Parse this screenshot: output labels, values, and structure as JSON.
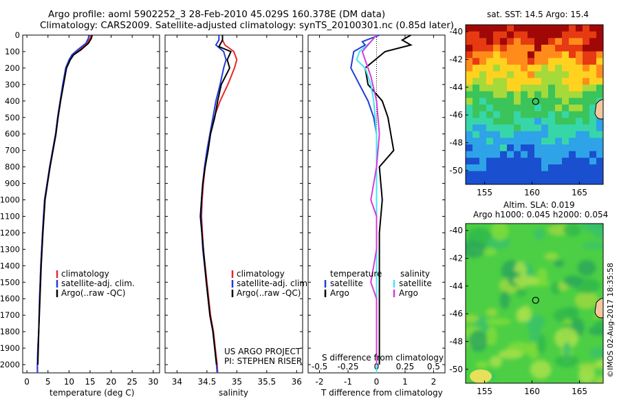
{
  "header": {
    "title_line1": "Argo profile: aoml 5902252_3 28-Feb-2010 45.029S 160.378E (DM data)",
    "title_line2": "Climatology: CARS2009. Satellite-adjusted climatology: synTS_20100301.nc (0.85d later)"
  },
  "colors": {
    "climatology": "#e8272a",
    "satellite": "#1f3bd8",
    "argo": "#000000",
    "satellite_s": "#3fe6f2",
    "argo_s": "#d63ad8"
  },
  "depth_axis": {
    "ticks": [
      0,
      100,
      200,
      300,
      400,
      500,
      600,
      700,
      800,
      900,
      1000,
      1100,
      1200,
      1300,
      1400,
      1500,
      1600,
      1700,
      1800,
      1900,
      2000
    ],
    "range": [
      0,
      2050
    ]
  },
  "chart_data": [
    {
      "id": "temperature",
      "type": "line",
      "xlabel": "temperature (deg C)",
      "xlim": [
        -1,
        31.5
      ],
      "xticks": [
        0,
        5,
        10,
        15,
        20,
        25,
        30
      ],
      "ylim": [
        0,
        2050
      ],
      "legend": {
        "placement": "lower-middle",
        "entries": [
          "climatology",
          "satellite-adj. clim.",
          "Argo(..raw -QC)"
        ]
      },
      "series": [
        {
          "name": "climatology",
          "color": "#e8272a",
          "x": [
            15.2,
            15.0,
            14.3,
            12.5,
            11.0,
            10.2,
            9.3,
            8.6,
            7.9,
            7.3,
            6.8,
            6.1,
            5.4,
            4.8,
            4.2,
            3.7,
            3.3,
            3.0,
            2.8,
            2.6,
            2.5,
            2.5
          ],
          "y": [
            0,
            20,
            50,
            90,
            120,
            150,
            200,
            300,
            400,
            500,
            600,
            700,
            800,
            900,
            1000,
            1200,
            1400,
            1600,
            1800,
            1900,
            2000,
            2050
          ]
        },
        {
          "name": "satellite-adj. clim.",
          "color": "#1f3bd8",
          "x": [
            14.7,
            14.6,
            14.0,
            12.0,
            10.7,
            10.0,
            9.2,
            8.5,
            7.9,
            7.3,
            6.8,
            6.1,
            5.4,
            4.8,
            4.2,
            3.7,
            3.3,
            3.0,
            2.8,
            2.6,
            2.5,
            2.5
          ],
          "y": [
            0,
            20,
            50,
            90,
            120,
            150,
            200,
            300,
            400,
            500,
            600,
            700,
            800,
            900,
            1000,
            1200,
            1400,
            1600,
            1800,
            1900,
            2000,
            2050
          ]
        },
        {
          "name": "Argo(..raw -QC)",
          "color": "#000000",
          "x": [
            15.5,
            15.3,
            14.6,
            12.8,
            11.1,
            10.3,
            9.4,
            8.7,
            8.0,
            7.4,
            6.9,
            6.2,
            5.5,
            4.9,
            4.3,
            3.8,
            3.4,
            3.1,
            2.8,
            2.7,
            2.6
          ],
          "y": [
            0,
            20,
            50,
            90,
            120,
            150,
            200,
            300,
            400,
            500,
            600,
            700,
            800,
            900,
            1000,
            1200,
            1400,
            1600,
            1800,
            1900,
            2000
          ]
        }
      ]
    },
    {
      "id": "salinity",
      "type": "line",
      "xlabel": "salinity",
      "xlim": [
        33.8,
        36.1
      ],
      "xticks": [
        34,
        34.5,
        35,
        35.5,
        36
      ],
      "ylim": [
        0,
        2050
      ],
      "legend": {
        "placement": "lower-middle",
        "entries": [
          "climatology",
          "satellite-adj. clim.",
          "Argo(..raw -QC)"
        ]
      },
      "annotation": [
        "US ARGO PROJECT",
        "PI: STEPHEN RISER"
      ],
      "series": [
        {
          "name": "climatology",
          "color": "#e8272a",
          "x": [
            34.76,
            34.76,
            34.8,
            34.95,
            35.0,
            34.96,
            34.85,
            34.72,
            34.62,
            34.56,
            34.51,
            34.47,
            34.44,
            34.42,
            34.41,
            34.44,
            34.5,
            34.56,
            34.61,
            34.64,
            34.67,
            34.68
          ],
          "y": [
            0,
            30,
            60,
            100,
            150,
            200,
            300,
            400,
            500,
            600,
            700,
            800,
            900,
            1000,
            1100,
            1300,
            1500,
            1700,
            1800,
            1900,
            2000,
            2050
          ]
        },
        {
          "name": "satellite-adj. clim.",
          "color": "#1f3bd8",
          "x": [
            34.7,
            34.7,
            34.65,
            34.78,
            34.82,
            34.78,
            34.72,
            34.65,
            34.6,
            34.55,
            34.5,
            34.46,
            34.43,
            34.41,
            34.4,
            34.43,
            34.49,
            34.55,
            34.6,
            34.63,
            34.66,
            34.67
          ],
          "y": [
            0,
            30,
            60,
            100,
            150,
            200,
            300,
            400,
            500,
            600,
            700,
            800,
            900,
            1000,
            1100,
            1300,
            1500,
            1700,
            1800,
            1900,
            2000,
            2050
          ]
        },
        {
          "name": "Argo(..raw -QC)",
          "color": "#000000",
          "x": [
            34.76,
            34.76,
            34.7,
            34.9,
            34.84,
            34.88,
            34.74,
            34.68,
            34.63,
            34.56,
            34.52,
            34.47,
            34.43,
            34.41,
            34.39,
            34.44,
            34.49,
            34.55,
            34.6,
            34.63,
            34.66
          ],
          "y": [
            0,
            30,
            70,
            100,
            150,
            200,
            300,
            400,
            500,
            600,
            700,
            800,
            900,
            1000,
            1100,
            1300,
            1500,
            1700,
            1800,
            1900,
            2000
          ]
        }
      ]
    },
    {
      "id": "difference",
      "type": "line",
      "xlabel": "T difference from climatology",
      "xlabel_top": "S difference from climatology",
      "xlim": [
        -2.4,
        2.4
      ],
      "xticks": [
        -2,
        -1,
        0,
        1,
        2
      ],
      "x2ticks": [
        "-0.5",
        "-0.25",
        "0",
        "0.25",
        "0.5"
      ],
      "ylim": [
        0,
        2050
      ],
      "legend": {
        "placement": "lower-middle",
        "temperature_header": "temperature",
        "salinity_header": "salinity",
        "entries": [
          "satellite",
          "Argo",
          "satellite",
          "Argo"
        ]
      },
      "series": [
        {
          "name": "temperature satellite",
          "color": "#1f3bd8",
          "x": [
            0.1,
            -0.5,
            -0.4,
            -0.8,
            -0.9,
            -0.6,
            -0.3,
            -0.1,
            0.0,
            0.0,
            0.0,
            0.0,
            0.0,
            0.0,
            0.0,
            0.0,
            0.0
          ],
          "y": [
            0,
            40,
            60,
            100,
            200,
            300,
            400,
            500,
            600,
            800,
            1000,
            1200,
            1400,
            1600,
            1800,
            2000,
            2050
          ]
        },
        {
          "name": "temperature Argo",
          "color": "#000000",
          "x": [
            1.2,
            0.9,
            1.2,
            0.3,
            -0.4,
            -0.3,
            0.2,
            0.4,
            0.5,
            0.6,
            0.1,
            0.2,
            0.1,
            0.1,
            0.1,
            0.1,
            0.1
          ],
          "y": [
            0,
            30,
            60,
            100,
            200,
            300,
            400,
            500,
            600,
            700,
            800,
            1000,
            1200,
            1400,
            1600,
            1800,
            2000
          ]
        },
        {
          "name": "salinity satellite",
          "color": "#3fe6f2",
          "x": [
            0.0,
            -0.2,
            -0.6,
            -0.7,
            -0.4,
            -0.2,
            -0.1,
            -0.05,
            0.0,
            0.0,
            0.0,
            0.0,
            0.0,
            0.0,
            0.0,
            0.0
          ],
          "y": [
            0,
            40,
            100,
            150,
            200,
            300,
            400,
            500,
            600,
            800,
            1000,
            1200,
            1400,
            1600,
            1800,
            2050
          ]
        },
        {
          "name": "salinity Argo",
          "color": "#d63ad8",
          "x": [
            0.0,
            -0.2,
            -0.5,
            -0.4,
            -0.2,
            0.0,
            0.1,
            0.0,
            -0.2,
            0.0,
            0.0,
            -0.2,
            0.0,
            0.0,
            0.0,
            0.0
          ],
          "y": [
            0,
            40,
            100,
            150,
            250,
            400,
            600,
            800,
            1000,
            1100,
            1300,
            1500,
            1600,
            1800,
            1900,
            2000
          ]
        }
      ]
    },
    {
      "id": "sst-map",
      "type": "heatmap",
      "title": "sat. SST: 14.5  Argo: 15.4",
      "xticks": [
        155,
        160,
        165
      ],
      "yticks": [
        -40,
        -42,
        -44,
        -46,
        -48,
        -50
      ],
      "xlim": [
        153,
        167.5
      ],
      "ylim": [
        -51,
        -39.5
      ],
      "marker": {
        "lon": 160.378,
        "lat": -45.029
      }
    },
    {
      "id": "sla-map",
      "type": "heatmap",
      "title_line1": "Altim. SLA: 0.019",
      "title_line2": "Argo h1000: 0.045 h2000: 0.054",
      "xticks": [
        155,
        160,
        165
      ],
      "yticks": [
        -40,
        -42,
        -44,
        -46,
        -48,
        -50
      ],
      "xlim": [
        153,
        167.5
      ],
      "ylim": [
        -51,
        -39.5
      ],
      "marker": {
        "lon": 160.378,
        "lat": -45.029
      }
    }
  ],
  "footer_stamp": "©IMOS 02-Aug-2017 18:35:58"
}
